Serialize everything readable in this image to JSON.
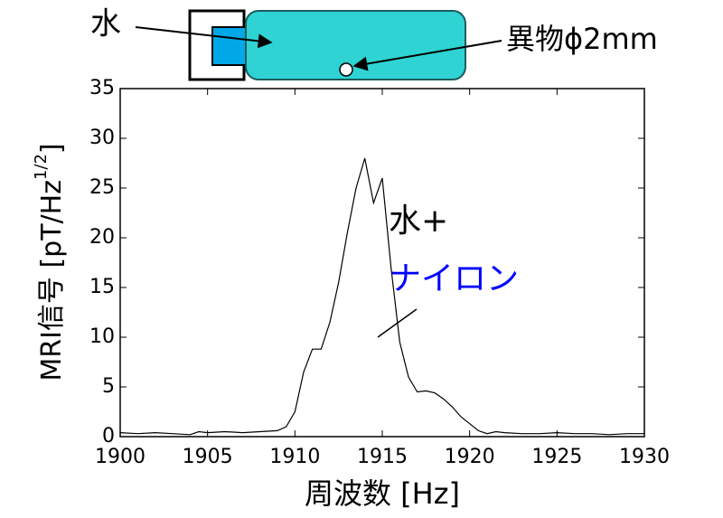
{
  "chart_data": {
    "type": "line",
    "x": [
      1900,
      1901,
      1902,
      1903,
      1904,
      1904.5,
      1905,
      1906,
      1907,
      1908,
      1909,
      1909.5,
      1910,
      1910.5,
      1911,
      1911.5,
      1912,
      1912.5,
      1913,
      1913.5,
      1914,
      1914.5,
      1915,
      1915.5,
      1916,
      1916.5,
      1917,
      1917.5,
      1918,
      1918.5,
      1919,
      1919.5,
      1920,
      1920.5,
      1921,
      1921.5,
      1922,
      1923,
      1924,
      1925,
      1926,
      1927,
      1928,
      1929,
      1930
    ],
    "values": [
      0.4,
      0.3,
      0.4,
      0.3,
      0.2,
      0.5,
      0.4,
      0.5,
      0.4,
      0.5,
      0.6,
      1.0,
      2.5,
      6.5,
      8.8,
      8.8,
      11.5,
      15.5,
      20.5,
      25,
      28,
      23.5,
      26,
      17,
      9.5,
      6,
      4.5,
      4.6,
      4.4,
      3.8,
      3,
      2,
      1.3,
      0.6,
      0.3,
      0.5,
      0.4,
      0.3,
      0.3,
      0.4,
      0.3,
      0.3,
      0.2,
      0.3,
      0.3
    ],
    "color": "#000000",
    "xlim": [
      1900,
      1930
    ],
    "xticks": [
      1900,
      1905,
      1910,
      1915,
      1920,
      1925,
      1930
    ],
    "ylim": [
      0,
      35
    ],
    "yticks": [
      0,
      5,
      10,
      15,
      20,
      25,
      30,
      35
    ],
    "x_label": "周波数 [Hz]",
    "y_label": {
      "main": "MRI信号 [pT/Hz",
      "sup": "1/2",
      "end": "]"
    },
    "annotations": [
      {
        "text": "水+",
        "color": "#000000"
      },
      {
        "text": "ナイロン",
        "color": "#0000ff"
      }
    ],
    "diagram": {
      "water_label": "水",
      "foreign_label": "異物ϕ2mm"
    }
  }
}
